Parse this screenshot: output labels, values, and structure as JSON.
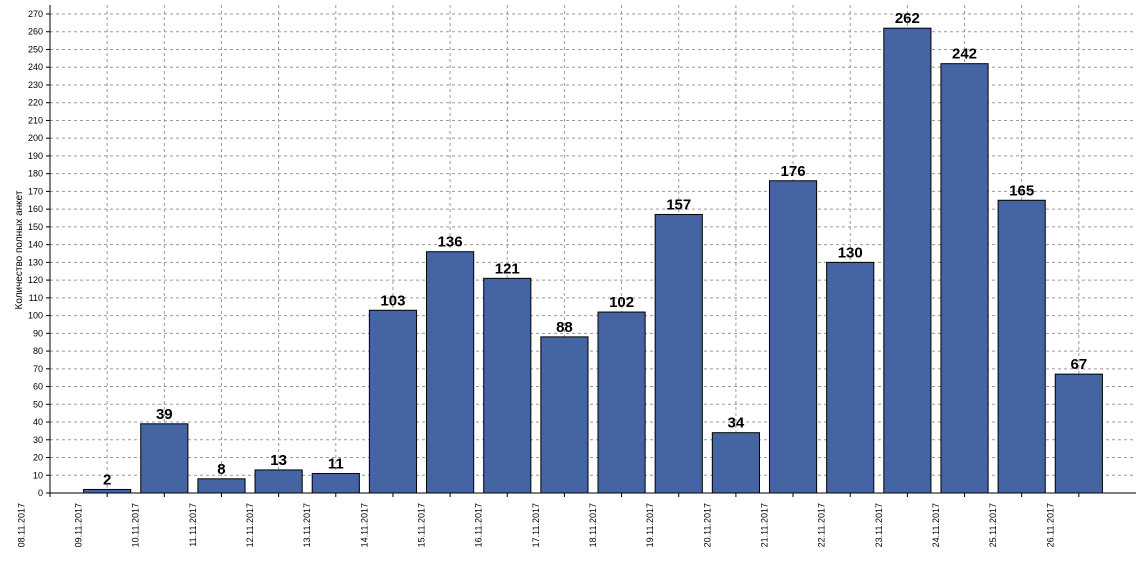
{
  "colors": {
    "bar": "#4464a4",
    "bar_stroke": "#000000",
    "grid": "#9a9a9a",
    "axis": "#000000"
  },
  "chart_data": {
    "type": "bar",
    "ylabel": "Количество полных анкет",
    "ylim": [
      0,
      270
    ],
    "ytick_step": 10,
    "grid": true,
    "x_ticks": [
      "08.11.2017",
      "09.11.2017",
      "10.11.2017",
      "11.11.2017",
      "12.11.2017",
      "13.11.2017",
      "14.11.2017",
      "15.11.2017",
      "16.11.2017",
      "17.11.2017",
      "18.11.2017",
      "19.11.2017",
      "20.11.2017",
      "21.11.2017",
      "22.11.2017",
      "23.11.2017",
      "24.11.2017",
      "25.11.2017",
      "26.11.2017"
    ],
    "categories": [
      "09.11.2017",
      "10.11.2017",
      "11.11.2017",
      "12.11.2017",
      "13.11.2017",
      "14.11.2017",
      "15.11.2017",
      "16.11.2017",
      "17.11.2017",
      "18.11.2017",
      "19.11.2017",
      "20.11.2017",
      "21.11.2017",
      "22.11.2017",
      "23.11.2017",
      "24.11.2017",
      "25.11.2017",
      "26.11.2017"
    ],
    "values": [
      2,
      39,
      8,
      13,
      11,
      103,
      136,
      121,
      88,
      102,
      157,
      34,
      176,
      130,
      262,
      242,
      165,
      67
    ]
  }
}
